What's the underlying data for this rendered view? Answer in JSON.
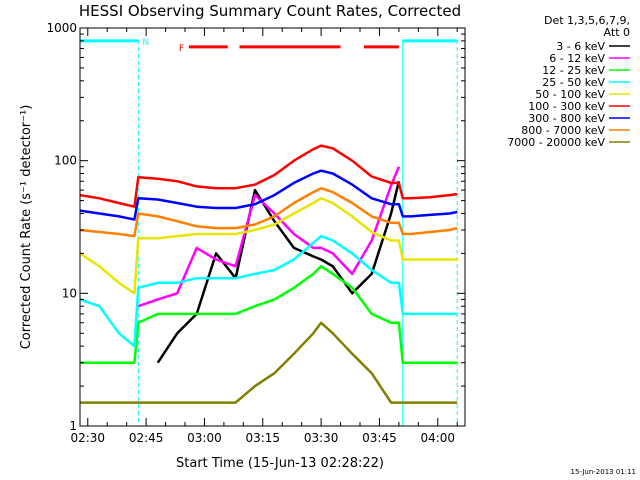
{
  "chart_data": {
    "type": "line",
    "title": "HESSI Observing Summary Count Rates, Corrected",
    "xlabel": "Start Time (15-Jun-13 02:28:22)",
    "ylabel": "Corrected Count Rate (s⁻¹ detector⁻¹)",
    "yscale": "log",
    "ylim": [
      1,
      1000
    ],
    "xlim_minutes_after_0228": [
      0,
      99
    ],
    "x_tick_labels": [
      "02:30",
      "02:45",
      "03:00",
      "03:15",
      "03:30",
      "03:45",
      "04:00"
    ],
    "x_tick_minutes": [
      2,
      17,
      32,
      47,
      62,
      77,
      92
    ],
    "y_tick_labels": [
      "1",
      "10",
      "100",
      "1000"
    ],
    "y_tick_values": [
      1,
      10,
      100,
      1000
    ],
    "legend_header": [
      "Det 1,3,5,6,7,9,",
      "Att 0"
    ],
    "legend_position": "right, outside plot",
    "flags": [
      {
        "label": "N",
        "color": "#00ffff",
        "segments": [
          [
            0,
            15
          ],
          [
            83,
            97
          ]
        ],
        "level": 800
      },
      {
        "label": "F",
        "color": "#ff0000",
        "segments": [
          [
            28,
            38
          ],
          [
            41,
            67
          ],
          [
            73,
            82
          ]
        ],
        "level": 720
      }
    ],
    "vertical_markers": [
      {
        "minute": 15,
        "style": "dashed"
      },
      {
        "minute": 83,
        "style": "solid"
      },
      {
        "minute": 97,
        "style": "dashed"
      }
    ],
    "x": [
      0,
      5,
      10,
      14,
      15,
      20,
      25,
      30,
      35,
      40,
      45,
      50,
      55,
      60,
      62,
      65,
      70,
      75,
      80,
      82,
      83,
      85,
      90,
      95,
      97
    ],
    "series": [
      {
        "name": "3 - 6 keV",
        "color": "#000000",
        "values": [
          null,
          null,
          null,
          null,
          null,
          3,
          5,
          7,
          20,
          13,
          60,
          35,
          22,
          19,
          18,
          16,
          10,
          14,
          40,
          70,
          null,
          null,
          null,
          null,
          null
        ]
      },
      {
        "name": "6 - 12 keV",
        "color": "#ff00ff",
        "values": [
          null,
          null,
          null,
          null,
          8,
          9,
          10,
          22,
          18,
          16,
          55,
          40,
          28,
          22,
          22,
          20,
          14,
          25,
          65,
          90,
          null,
          null,
          null,
          null,
          null
        ]
      },
      {
        "name": "12 - 25 keV",
        "color": "#00ff00",
        "values": [
          3,
          3,
          3,
          3,
          6,
          7,
          7,
          7,
          7,
          7,
          8,
          9,
          11,
          14,
          16,
          14,
          11,
          7,
          6,
          6,
          3,
          3,
          3,
          3,
          3
        ]
      },
      {
        "name": "25 - 50 keV",
        "color": "#00ffff",
        "values": [
          9,
          8,
          5,
          4,
          11,
          12,
          12,
          13,
          13,
          13,
          14,
          15,
          18,
          24,
          27,
          25,
          20,
          15,
          12,
          12,
          7,
          7,
          7,
          7,
          7
        ]
      },
      {
        "name": "50 - 100 keV",
        "color": "#e6e600",
        "values": [
          20,
          16,
          12,
          10,
          26,
          26,
          27,
          28,
          28,
          28,
          30,
          33,
          40,
          48,
          52,
          48,
          38,
          29,
          25,
          25,
          18,
          18,
          18,
          18,
          18
        ]
      },
      {
        "name": "100 - 300 keV",
        "color": "#ff0000",
        "values": [
          55,
          52,
          48,
          45,
          75,
          73,
          70,
          64,
          62,
          62,
          66,
          78,
          100,
          122,
          130,
          124,
          100,
          76,
          68,
          68,
          52,
          52,
          53,
          55,
          56
        ]
      },
      {
        "name": "300 - 800 keV",
        "color": "#0000ff",
        "values": [
          42,
          40,
          38,
          36,
          52,
          51,
          48,
          45,
          44,
          44,
          47,
          55,
          68,
          80,
          84,
          80,
          66,
          52,
          47,
          47,
          38,
          38,
          39,
          40,
          41
        ]
      },
      {
        "name": "800 - 7000 keV",
        "color": "#ff8000",
        "values": [
          30,
          29,
          28,
          27,
          40,
          38,
          35,
          32,
          31,
          31,
          33,
          38,
          48,
          58,
          62,
          58,
          48,
          38,
          34,
          34,
          28,
          28,
          29,
          30,
          31
        ]
      },
      {
        "name": "7000 - 20000 keV",
        "color": "#808000",
        "values": [
          1.5,
          1.5,
          1.5,
          1.5,
          1.5,
          1.5,
          1.5,
          1.5,
          1.5,
          1.5,
          2,
          2.5,
          3.5,
          5,
          6,
          5,
          3.5,
          2.5,
          1.5,
          1.5,
          1.5,
          1.5,
          1.5,
          1.5,
          1.5
        ]
      }
    ]
  },
  "footer_stamp": "15-Jun-2013 01:11"
}
